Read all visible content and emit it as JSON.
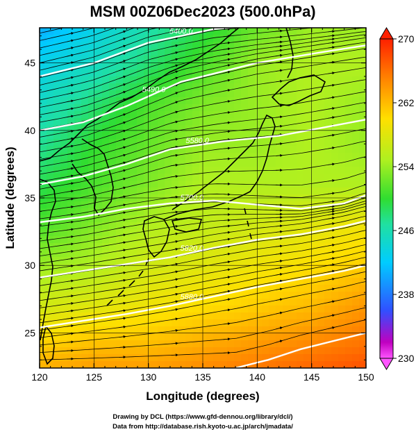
{
  "chart_data": {
    "type": "heatmap",
    "title": "MSM 00Z06Dec2023 (500.0hPa)",
    "xlabel": "Longitude (degrees)",
    "ylabel": "Latitude  (degrees)",
    "xlim": [
      120,
      150
    ],
    "ylim": [
      22.4,
      47.6
    ],
    "x_ticks": [
      120,
      125,
      130,
      135,
      140,
      145,
      150
    ],
    "y_ticks": [
      25,
      30,
      35,
      40,
      45
    ],
    "colorbar": {
      "ticks": [
        230,
        238,
        246,
        254,
        262,
        270
      ],
      "range": [
        230,
        270
      ],
      "colormap": "magenta-blue-cyan-green-yellow-orange-red"
    },
    "contours": [
      {
        "label": "5400.0",
        "lon": [
          120,
          125,
          130,
          136,
          143,
          150
        ],
        "lat": [
          44.0,
          45.0,
          46.5,
          47.5,
          48.0,
          48.5
        ]
      },
      {
        "label": "5490.0",
        "lon": [
          120,
          124,
          128,
          133,
          140,
          146,
          150
        ],
        "lat": [
          40.0,
          40.6,
          41.8,
          43.6,
          45.0,
          45.8,
          46.3
        ]
      },
      {
        "label": "5580.0",
        "lon": [
          120,
          124,
          128,
          132,
          137,
          142,
          146,
          150
        ],
        "lat": [
          36.0,
          36.6,
          37.5,
          38.6,
          39.2,
          39.6,
          40.2,
          40.8
        ]
      },
      {
        "label": "5700.0",
        "lon": [
          120,
          124,
          128,
          132,
          136,
          140,
          144,
          148,
          150
        ],
        "lat": [
          33.2,
          33.6,
          34.2,
          34.6,
          34.8,
          34.5,
          34.2,
          34.6,
          35.2
        ]
      },
      {
        "label": "5820.0",
        "lon": [
          120,
          124,
          128,
          132,
          136,
          140,
          144,
          148,
          150
        ],
        "lat": [
          29.1,
          29.6,
          30.1,
          30.6,
          31.3,
          31.9,
          32.3,
          32.9,
          33.3
        ]
      },
      {
        "label": "5880.0",
        "lon": [
          120,
          124,
          128,
          132,
          136,
          140,
          144,
          148,
          150
        ],
        "lat": [
          25.4,
          25.9,
          26.4,
          27.0,
          27.7,
          28.4,
          29.0,
          29.6,
          30.0
        ]
      },
      {
        "label": "",
        "lon": [
          138,
          141,
          144,
          147,
          150
        ],
        "lat": [
          22.4,
          23.0,
          23.8,
          24.4,
          25.0
        ]
      }
    ],
    "temperature_field_K": {
      "lat": [
        48,
        45,
        42,
        39,
        36,
        33,
        30,
        27,
        24,
        22
      ],
      "lon": [
        120,
        125,
        130,
        135,
        140,
        145,
        150
      ],
      "values": [
        [
          240,
          243,
          246,
          249,
          252,
          254,
          254
        ],
        [
          243,
          245,
          248,
          251,
          254,
          255,
          255
        ],
        [
          245,
          248,
          251,
          253,
          254,
          255,
          254
        ],
        [
          247,
          250,
          252,
          254,
          254,
          255,
          254
        ],
        [
          249,
          251,
          253,
          255,
          255,
          255,
          255
        ],
        [
          251,
          253,
          255,
          256,
          257,
          258,
          259
        ],
        [
          254,
          255,
          257,
          258,
          259,
          260,
          261
        ],
        [
          257,
          258,
          259,
          260,
          261,
          262,
          264
        ],
        [
          261,
          262,
          262,
          263,
          264,
          265,
          266
        ],
        [
          263,
          264,
          264,
          265,
          266,
          267,
          268
        ]
      ]
    },
    "wind": "streamlines with arrows, predominantly westerly (west to east)"
  },
  "credits": {
    "line1": "Drawing by DCL (https://www.gfd-dennou.org/library/dcl/)",
    "line2": "Data from http://database.rish.kyoto-u.ac.jp/arch/jmadata/"
  }
}
